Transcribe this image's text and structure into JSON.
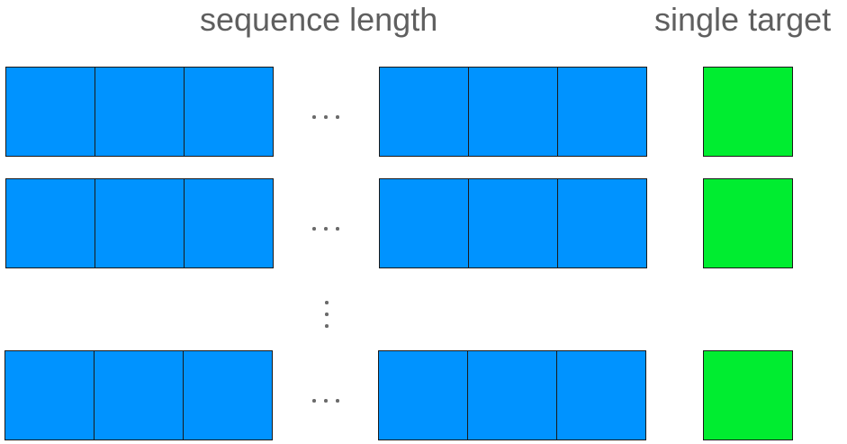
{
  "headings": {
    "sequence": "sequence length",
    "target": "single target"
  },
  "colors": {
    "sequence_cell": "#0093ff",
    "target_cell": "#00ed30",
    "cell_border": "#1a1a1a",
    "heading_text": "#5f5f5f"
  },
  "rows": [
    {
      "leading_cells": 3,
      "trailing_cells": 3,
      "targets": 1,
      "gap": "horizontal-ellipsis"
    },
    {
      "leading_cells": 3,
      "trailing_cells": 3,
      "targets": 1,
      "gap": "horizontal-ellipsis"
    },
    {
      "leading_cells": 3,
      "trailing_cells": 3,
      "targets": 1,
      "gap": "horizontal-ellipsis"
    }
  ],
  "between_rows": "vertical-ellipsis"
}
